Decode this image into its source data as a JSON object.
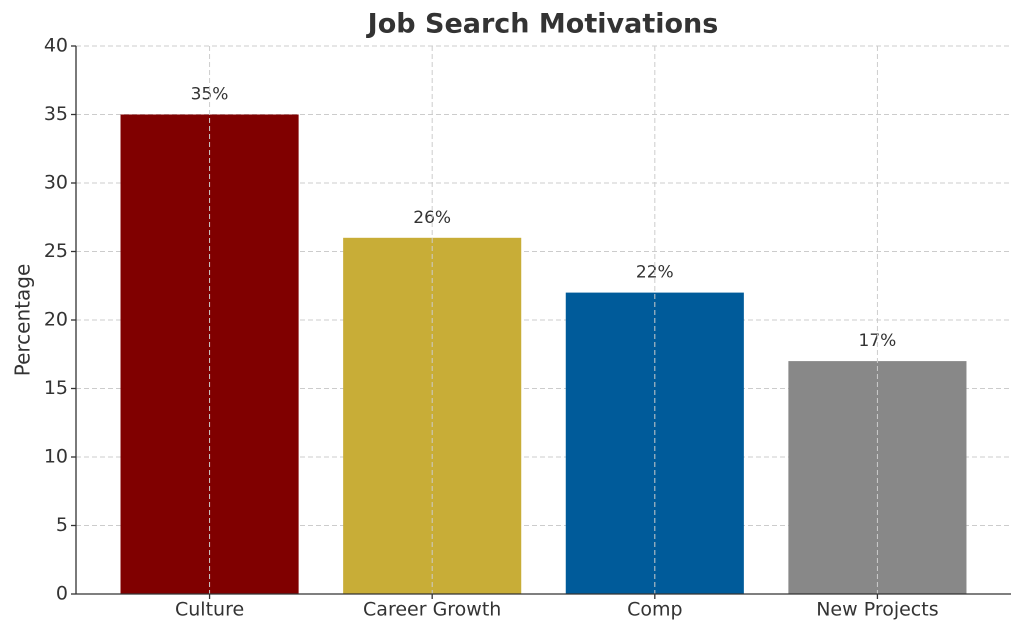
{
  "chart_data": {
    "type": "bar",
    "title": "Job Search Motivations",
    "ylabel": "Percentage",
    "categories": [
      "Culture",
      "Career Growth",
      "Comp",
      "New Projects"
    ],
    "values": [
      35,
      26,
      22,
      17
    ],
    "value_labels": [
      "35%",
      "26%",
      "22%",
      "17%"
    ],
    "colors": [
      "#800000",
      "#c8ad37",
      "#005b9a",
      "#888888"
    ],
    "ylim": [
      0,
      40
    ],
    "yticks": [
      0,
      5,
      10,
      15,
      20,
      25,
      30,
      35,
      40
    ],
    "grid": true
  }
}
